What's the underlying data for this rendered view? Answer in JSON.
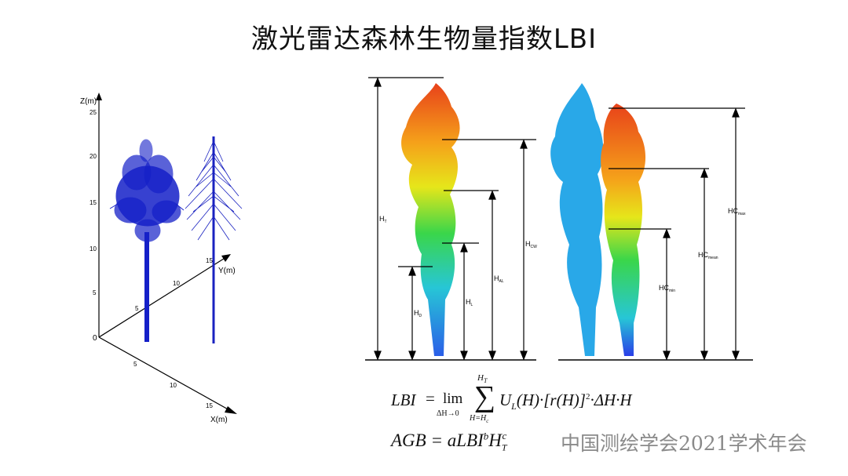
{
  "title": "激光雷达森林生物量指数LBI",
  "watermark": "中国测绘学会2021学术年会",
  "axes3d": {
    "z_label": "Z(m)",
    "y_label": "Y(m)",
    "x_label": "X(m)",
    "z_ticks": [
      "25",
      "20",
      "15",
      "10",
      "5",
      "0"
    ],
    "y_ticks": [
      "5",
      "10",
      "15"
    ],
    "x_ticks": [
      "5",
      "10",
      "15"
    ]
  },
  "labels": {
    "ht": "H",
    "ht_sub": "T",
    "hd": "H",
    "hd_sub": "D",
    "hl": "H",
    "hl_sub": "L",
    "hal": "H",
    "hal_sub": "AL",
    "hcw": "H",
    "hcw_sub": "CW",
    "hcmin": "HC",
    "hcmin_sub": "min",
    "hcmean": "HC",
    "hcmean_sub": "mean",
    "hcmax": "HC",
    "hcmax_sub": "max"
  },
  "formula1": {
    "lhs": "LBI",
    "eq": "=",
    "lim": "lim",
    "lim_sub": "ΔH→0",
    "sum_top": "H",
    "sum_top_sub": "T",
    "sum_bottom": "H=H",
    "sum_bottom_sub": "c",
    "body": "U",
    "body_sub": "L",
    "body_rest": "(H)·[r(H)]",
    "sq": "2",
    "tail": "·ΔH·H"
  },
  "formula2": {
    "text": "AGB = aLBI",
    "b": "b",
    "h": "H",
    "c": "c",
    "t": "T"
  },
  "colors": {
    "axis": "#000000",
    "tree_blue": "#1520c8",
    "tree_sky": "#29a8e8",
    "crown_red": "#e8421a",
    "crown_orange": "#f5a21a",
    "crown_yellow": "#e6e61a",
    "crown_green": "#3ad64a",
    "trunk_cyan": "#27c6d6"
  }
}
